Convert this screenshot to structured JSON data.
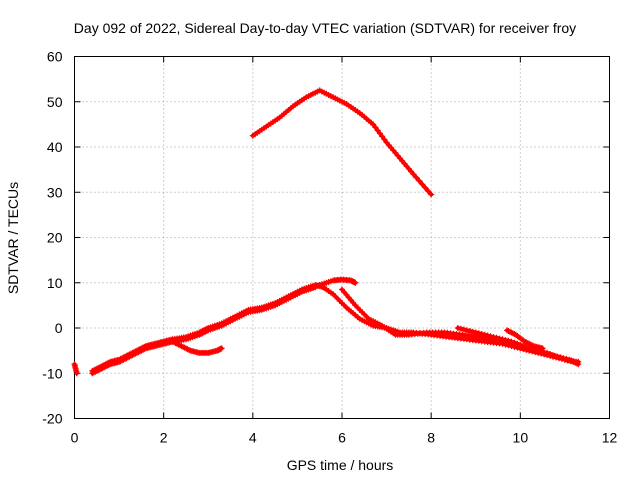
{
  "chart_data": {
    "type": "scatter",
    "title": "Day 092 of 2022, Sidereal Day-to-day VTEC variation (SDTVAR) for receiver froy",
    "xlabel": "GPS time / hours",
    "ylabel": "SDTVAR / TECUs",
    "xlim": [
      0,
      12
    ],
    "ylim": [
      -20,
      60
    ],
    "xticks": [
      0,
      2,
      4,
      6,
      8,
      10,
      12
    ],
    "yticks": [
      -20,
      -10,
      0,
      10,
      20,
      30,
      40,
      50,
      60
    ],
    "xtick_labels": [
      "0",
      "2",
      "4",
      "6",
      "8",
      "10",
      "12"
    ],
    "ytick_labels": [
      "-20",
      "-10",
      "0",
      "10",
      "20",
      "30",
      "40",
      "50",
      "60"
    ],
    "grid": true,
    "series_color": "#ff0000",
    "series": [
      {
        "name": "upper-arc",
        "x": [
          4.0,
          4.3,
          4.6,
          4.9,
          5.2,
          5.5,
          5.8,
          6.1,
          6.4,
          6.7,
          7.0,
          7.3,
          7.6,
          8.0
        ],
        "y": [
          42.5,
          44.5,
          46.5,
          49.0,
          51.0,
          52.5,
          51.0,
          49.5,
          47.5,
          45.0,
          41.0,
          37.5,
          34.0,
          29.5
        ]
      },
      {
        "name": "lower-main-a",
        "x": [
          0.4,
          0.6,
          0.8,
          1.0,
          1.2,
          1.4,
          1.6,
          1.8,
          2.0,
          2.2,
          2.5,
          2.8,
          3.0,
          3.3,
          3.6,
          3.9,
          4.2,
          4.5,
          4.8,
          5.1,
          5.4,
          5.6
        ],
        "y": [
          -9.5,
          -8.5,
          -7.5,
          -7.0,
          -6.0,
          -5.0,
          -4.0,
          -3.5,
          -3.0,
          -2.5,
          -2.0,
          -1.0,
          0.0,
          1.0,
          2.5,
          4.0,
          4.5,
          5.5,
          7.0,
          8.5,
          9.5,
          9.0
        ]
      },
      {
        "name": "lower-main-b",
        "x": [
          0.4,
          0.6,
          0.8,
          1.0,
          1.2,
          1.4,
          1.6,
          1.8,
          2.0,
          2.2,
          2.5,
          2.8,
          3.0,
          3.3,
          3.6,
          3.9,
          4.2,
          4.5,
          4.8,
          5.1,
          5.4
        ],
        "y": [
          -10.0,
          -9.0,
          -8.0,
          -7.5,
          -6.5,
          -5.5,
          -4.5,
          -4.0,
          -3.5,
          -3.0,
          -2.5,
          -1.5,
          -0.5,
          0.5,
          2.0,
          3.5,
          4.0,
          5.0,
          6.5,
          8.0,
          9.0
        ]
      },
      {
        "name": "lower-short-dip",
        "x": [
          2.2,
          2.4,
          2.6,
          2.8,
          3.0,
          3.2,
          3.3
        ],
        "y": [
          -3.0,
          -4.0,
          -5.0,
          -5.5,
          -5.5,
          -5.0,
          -4.5
        ]
      },
      {
        "name": "lower-peak",
        "x": [
          5.2,
          5.5,
          5.8,
          6.0,
          6.2,
          6.3
        ],
        "y": [
          8.5,
          9.5,
          10.5,
          10.7,
          10.5,
          10.0
        ]
      },
      {
        "name": "lower-descent-a",
        "x": [
          5.5,
          5.8,
          6.1,
          6.4,
          6.7,
          7.0,
          7.3,
          7.6,
          8.0,
          8.4,
          8.8,
          9.2,
          9.6,
          10.0,
          10.4,
          10.8,
          11.2
        ],
        "y": [
          9.5,
          7.5,
          4.5,
          2.0,
          0.5,
          0.0,
          -1.0,
          -1.0,
          -1.5,
          -2.0,
          -2.5,
          -3.0,
          -3.5,
          -4.5,
          -5.5,
          -6.5,
          -7.5
        ]
      },
      {
        "name": "lower-descent-b",
        "x": [
          6.0,
          6.3,
          6.6,
          6.9,
          7.2,
          7.5,
          7.9,
          8.3,
          8.7,
          9.1,
          9.5,
          9.9,
          10.3,
          10.7,
          11.1,
          11.3
        ],
        "y": [
          8.5,
          5.0,
          2.0,
          0.5,
          -1.5,
          -1.5,
          -1.0,
          -1.0,
          -1.5,
          -2.0,
          -2.5,
          -3.5,
          -5.0,
          -6.0,
          -7.0,
          -8.0
        ]
      },
      {
        "name": "lower-tail",
        "x": [
          8.6,
          9.0,
          9.4,
          9.8,
          10.2,
          10.6,
          11.0,
          11.3
        ],
        "y": [
          0.0,
          -1.0,
          -2.0,
          -3.0,
          -4.5,
          -5.5,
          -7.0,
          -7.5
        ]
      },
      {
        "name": "lower-tail-hump",
        "x": [
          9.7,
          9.9,
          10.1,
          10.3,
          10.5
        ],
        "y": [
          -0.5,
          -1.5,
          -3.0,
          -4.0,
          -4.5
        ]
      },
      {
        "name": "outlier-left",
        "x": [
          0.0,
          0.05
        ],
        "y": [
          -8.0,
          -10.0
        ]
      }
    ]
  }
}
